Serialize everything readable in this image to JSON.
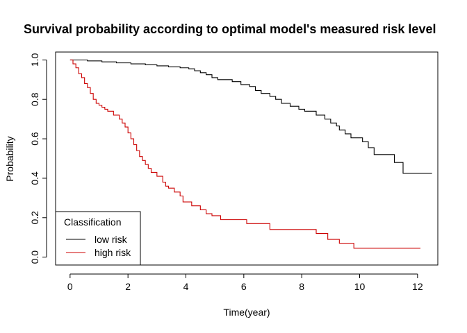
{
  "chart_data": {
    "type": "line",
    "title": "Survival probability according to optimal model's measured risk level",
    "xlabel": "Time(year)",
    "ylabel": "Probability",
    "xlim": [
      -0.5,
      12.7
    ],
    "ylim": [
      -0.04,
      1.04
    ],
    "x_ticks": [
      0,
      2,
      4,
      6,
      8,
      10,
      12
    ],
    "y_ticks": [
      0.0,
      0.2,
      0.4,
      0.6,
      0.8,
      1.0
    ],
    "x_tick_labels": [
      "0",
      "2",
      "4",
      "6",
      "8",
      "10",
      "12"
    ],
    "y_tick_labels": [
      "0.0",
      "0.2",
      "0.4",
      "0.6",
      "0.8",
      "1.0"
    ],
    "grid": false,
    "legend": {
      "title": "Classification",
      "position": "bottom-left",
      "entries": [
        {
          "label": "low risk",
          "color": "#000000"
        },
        {
          "label": "high risk",
          "color": "#cc0000"
        }
      ]
    },
    "series": [
      {
        "name": "low risk",
        "color": "#000000",
        "step": true,
        "x": [
          0,
          0.6,
          1.1,
          1.6,
          2.1,
          2.6,
          3.0,
          3.4,
          3.8,
          4.1,
          4.3,
          4.5,
          4.7,
          4.9,
          5.1,
          5.6,
          5.9,
          6.2,
          6.4,
          6.6,
          6.9,
          7.1,
          7.3,
          7.6,
          7.9,
          8.1,
          8.5,
          8.8,
          9.0,
          9.2,
          9.3,
          9.5,
          9.7,
          10.1,
          10.3,
          10.5,
          10.7,
          11.2,
          11.5,
          12.5
        ],
        "y": [
          1.0,
          0.995,
          0.99,
          0.985,
          0.98,
          0.975,
          0.97,
          0.965,
          0.96,
          0.955,
          0.945,
          0.935,
          0.925,
          0.91,
          0.9,
          0.89,
          0.875,
          0.865,
          0.845,
          0.83,
          0.815,
          0.8,
          0.78,
          0.765,
          0.75,
          0.74,
          0.72,
          0.7,
          0.68,
          0.665,
          0.645,
          0.625,
          0.605,
          0.585,
          0.555,
          0.52,
          0.52,
          0.48,
          0.425,
          0.425
        ]
      },
      {
        "name": "high risk",
        "color": "#cc0000",
        "step": true,
        "x": [
          0,
          0.1,
          0.2,
          0.3,
          0.4,
          0.5,
          0.6,
          0.7,
          0.8,
          0.9,
          1.0,
          1.1,
          1.2,
          1.3,
          1.5,
          1.7,
          1.8,
          1.9,
          2.0,
          2.1,
          2.2,
          2.3,
          2.4,
          2.5,
          2.6,
          2.7,
          2.8,
          3.0,
          3.2,
          3.3,
          3.4,
          3.6,
          3.8,
          3.9,
          4.2,
          4.5,
          4.7,
          4.9,
          5.2,
          6.1,
          6.9,
          8.5,
          8.9,
          9.3,
          9.8,
          12.1
        ],
        "y": [
          1.0,
          0.98,
          0.96,
          0.93,
          0.91,
          0.88,
          0.86,
          0.83,
          0.8,
          0.78,
          0.77,
          0.76,
          0.75,
          0.74,
          0.72,
          0.7,
          0.68,
          0.66,
          0.63,
          0.6,
          0.57,
          0.54,
          0.51,
          0.49,
          0.47,
          0.45,
          0.43,
          0.41,
          0.38,
          0.36,
          0.35,
          0.33,
          0.31,
          0.28,
          0.26,
          0.24,
          0.22,
          0.21,
          0.19,
          0.17,
          0.14,
          0.12,
          0.09,
          0.07,
          0.045,
          0.045
        ]
      }
    ]
  }
}
